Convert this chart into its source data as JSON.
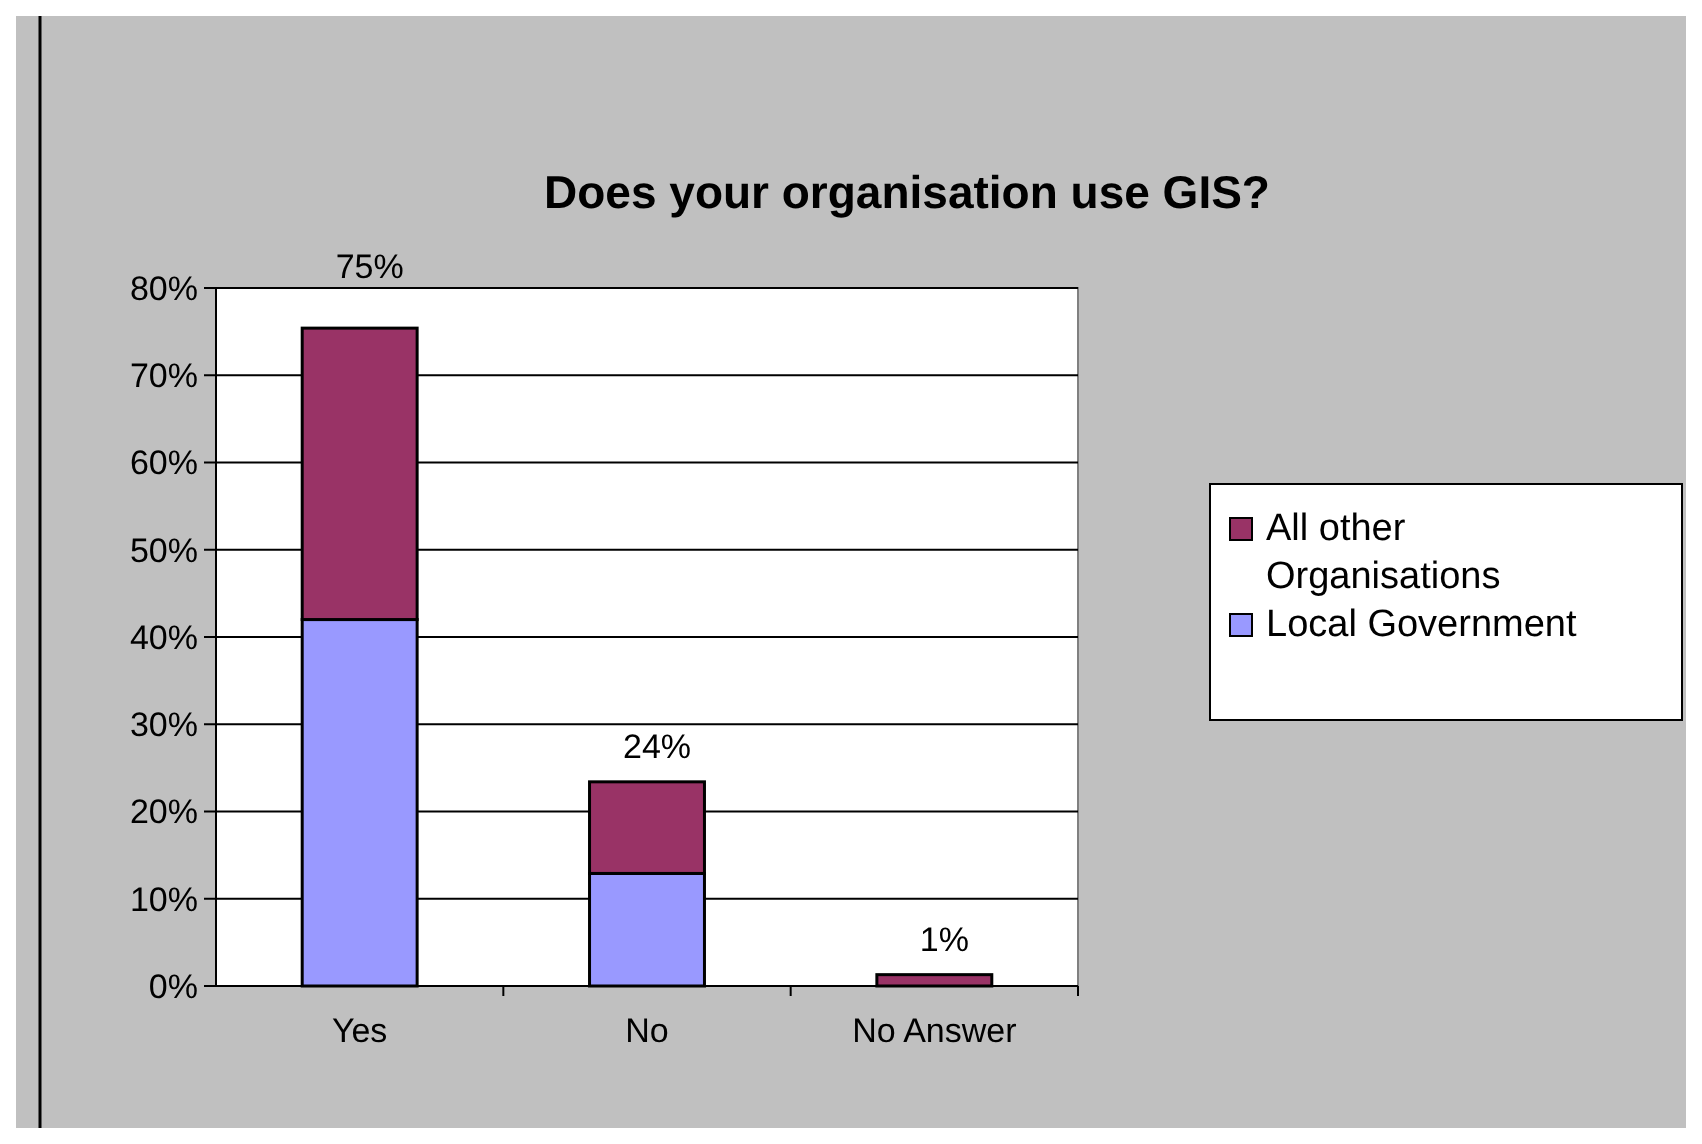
{
  "chart_data": {
    "type": "bar",
    "title": "Does your organisation use GIS?",
    "categories": [
      "Yes",
      "No",
      "No Answer"
    ],
    "stacked": true,
    "series": [
      {
        "name": "Local Government",
        "color": "#9999ff",
        "values": [
          42,
          12.9,
          0
        ]
      },
      {
        "name": "All other Organisations",
        "color": "#993366",
        "values": [
          33.4,
          10.5,
          1.3
        ]
      }
    ],
    "totals": [
      "75%",
      "24%",
      "1%"
    ],
    "ylim": [
      0,
      80
    ],
    "yticks": [
      {
        "value": 0,
        "label": "0%"
      },
      {
        "value": 10,
        "label": "10%"
      },
      {
        "value": 20,
        "label": "20%"
      },
      {
        "value": 30,
        "label": "30%"
      },
      {
        "value": 40,
        "label": "40%"
      },
      {
        "value": 50,
        "label": "50%"
      },
      {
        "value": 60,
        "label": "60%"
      },
      {
        "value": 70,
        "label": "70%"
      },
      {
        "value": 80,
        "label": "80%"
      }
    ],
    "grid": "y",
    "legend": "right"
  }
}
